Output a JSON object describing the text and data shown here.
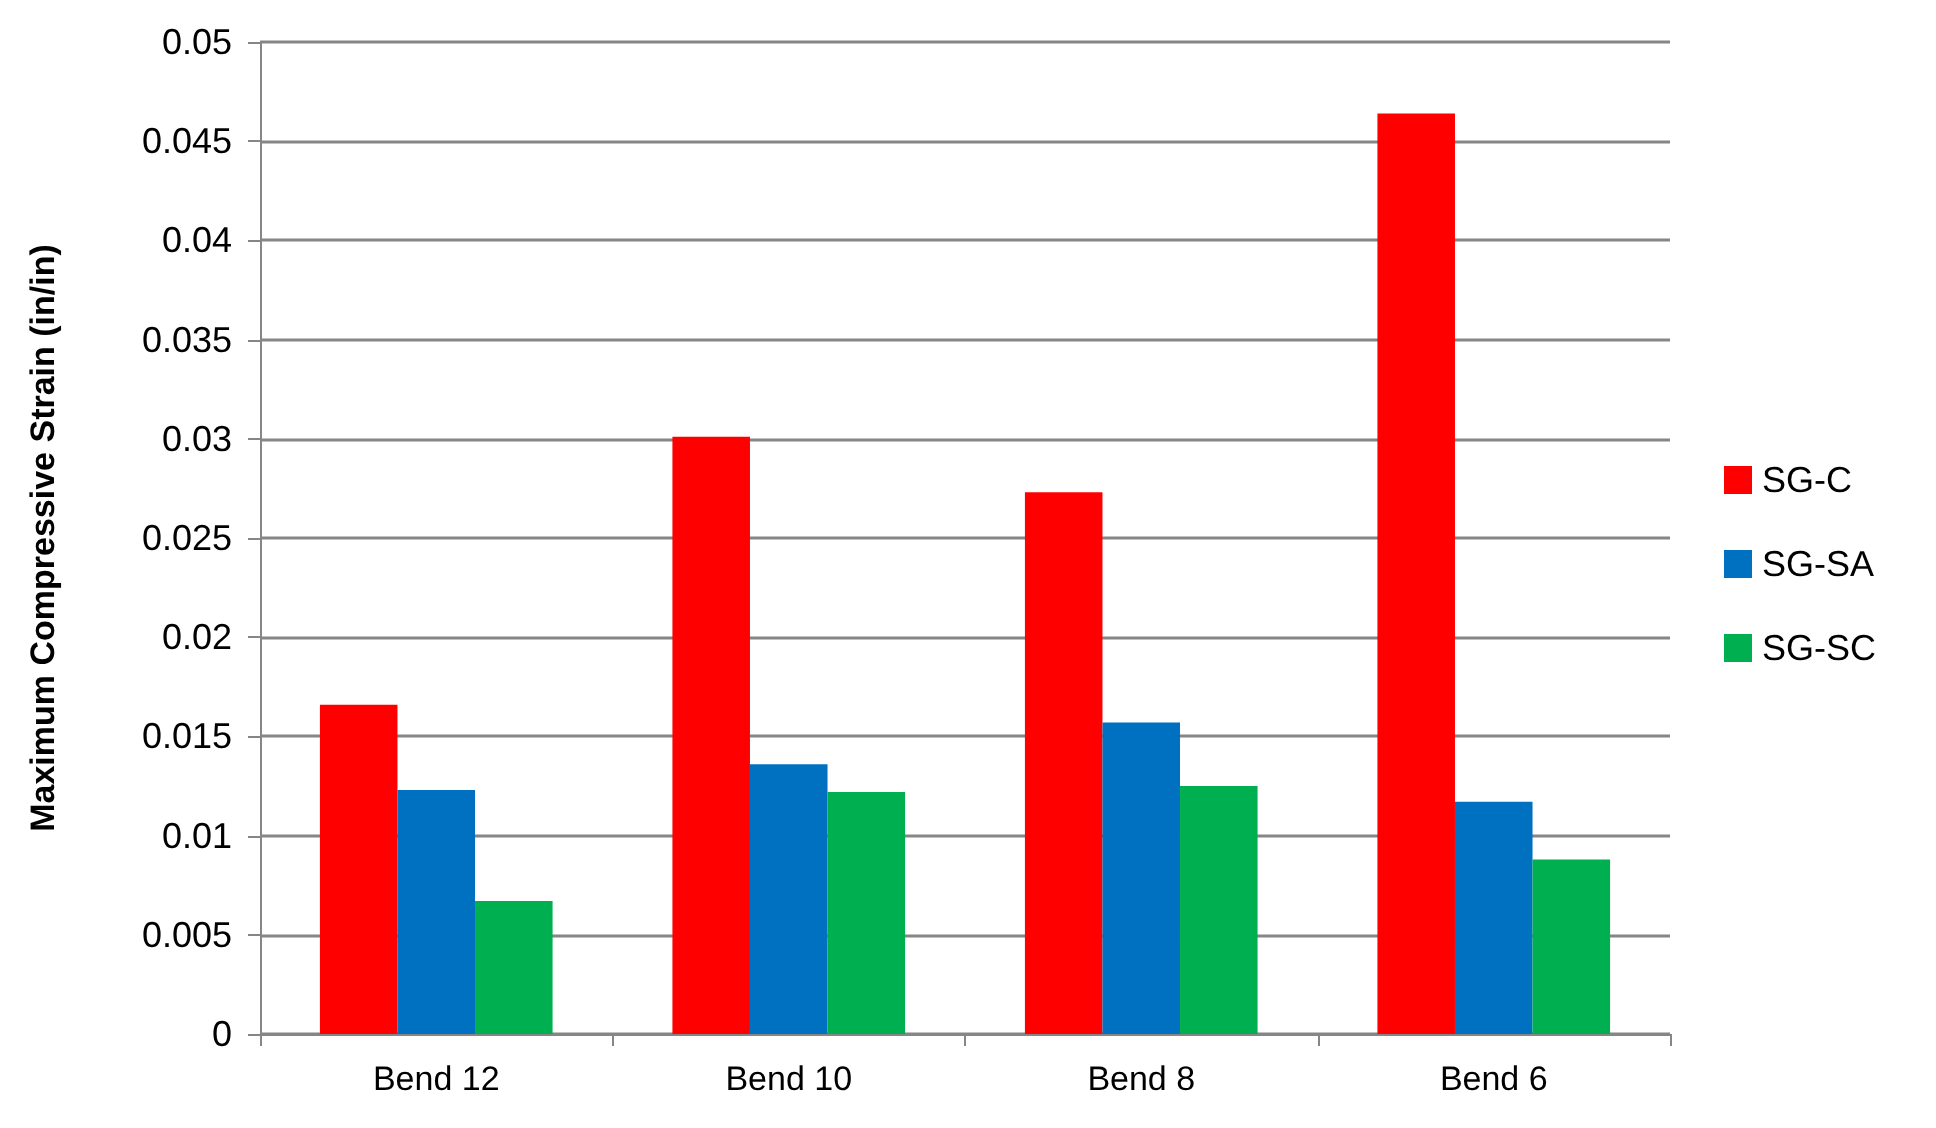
{
  "chart_data": {
    "type": "bar",
    "ylabel": "Maximum Compressive Strain (in/in)",
    "categories": [
      "Bend 12",
      "Bend 10",
      "Bend 8",
      "Bend 6"
    ],
    "series": [
      {
        "name": "SG-C",
        "color": "#ff0000",
        "values": [
          0.0166,
          0.0301,
          0.0273,
          0.0464
        ]
      },
      {
        "name": "SG-SA",
        "color": "#0070c0",
        "values": [
          0.0123,
          0.0136,
          0.0157,
          0.0117
        ]
      },
      {
        "name": "SG-SC",
        "color": "#00b050",
        "values": [
          0.0067,
          0.0122,
          0.0125,
          0.0088
        ]
      }
    ],
    "ylim": [
      0,
      0.05
    ],
    "yticks": [
      0,
      0.005,
      0.01,
      0.015,
      0.02,
      0.025,
      0.03,
      0.035,
      0.04,
      0.045,
      0.05
    ],
    "grid": "y",
    "legend": "right"
  }
}
